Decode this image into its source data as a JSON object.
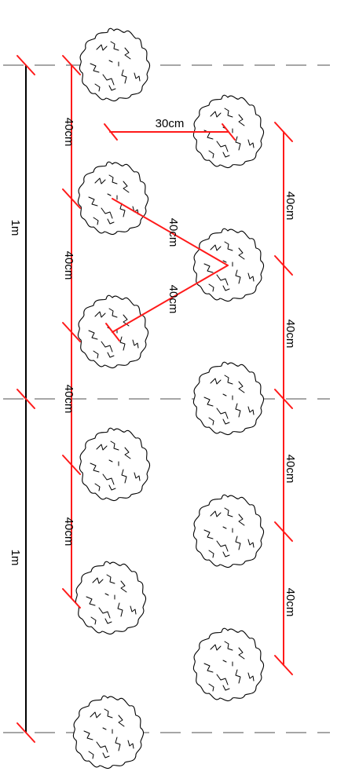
{
  "labels": {
    "meter_top": "1m",
    "meter_bottom": "1m",
    "left_1": "40cm",
    "left_2": "40cm",
    "left_3": "40cm",
    "left_4": "40cm",
    "diag_1": "40cm",
    "diag_2": "40cm",
    "offset": "30cm",
    "right_1": "40cm",
    "right_2": "40cm",
    "right_3": "40cm",
    "right_4": "40cm"
  },
  "colors": {
    "dimension_line": "#ff1a1a",
    "guide_line": "#a6a6a6",
    "meter_line": "#000000",
    "plant_outline": "#000000"
  },
  "icons": [
    "plant-symbol"
  ]
}
